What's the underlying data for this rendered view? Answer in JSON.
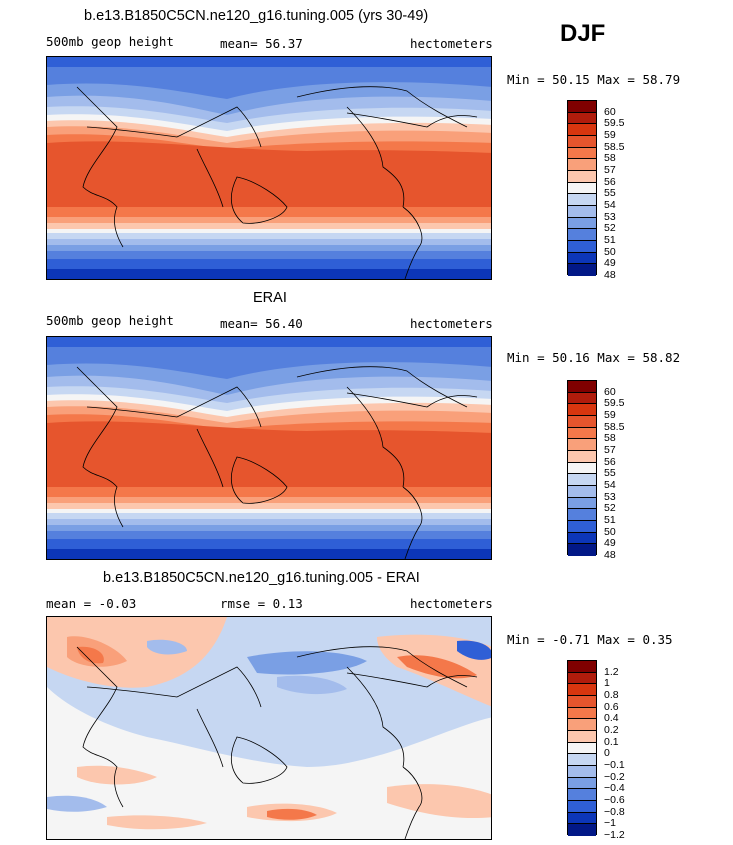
{
  "season_label": "DJF",
  "panels": [
    {
      "title": "b.e13.B1850C5CN.ne120_g16.tuning.005 (yrs 30-49)",
      "left_label": "500mb geop height",
      "center_label": "mean=  56.37",
      "units": "hectometers",
      "min_max": "Min =  50.15 Max =  58.79",
      "colorbar_labels": [
        "60",
        "59.5",
        "59",
        "58.5",
        "58",
        "57",
        "56",
        "55",
        "54",
        "53",
        "52",
        "51",
        "50",
        "49",
        "48"
      ],
      "colorbar_colors": [
        "#800000",
        "#b01c0c",
        "#d8360f",
        "#e6552d",
        "#f4784a",
        "#f9a07a",
        "#fcc7ae",
        "#f5f5f5",
        "#c6d7f2",
        "#a3bcec",
        "#7a9fe4",
        "#5580dd",
        "#2f5fd6",
        "#0c36b8",
        "#021887"
      ]
    },
    {
      "title": "ERAI",
      "left_label": "500mb geop height",
      "center_label": "mean=  56.40",
      "units": "hectometers",
      "min_max": "Min =  50.16 Max =  58.82",
      "colorbar_labels": [
        "60",
        "59.5",
        "59",
        "58.5",
        "58",
        "57",
        "56",
        "55",
        "54",
        "53",
        "52",
        "51",
        "50",
        "49",
        "48"
      ],
      "colorbar_colors": [
        "#800000",
        "#b01c0c",
        "#d8360f",
        "#e6552d",
        "#f4784a",
        "#f9a07a",
        "#fcc7ae",
        "#f5f5f5",
        "#c6d7f2",
        "#a3bcec",
        "#7a9fe4",
        "#5580dd",
        "#2f5fd6",
        "#0c36b8",
        "#021887"
      ]
    },
    {
      "title": "b.e13.B1850C5CN.ne120_g16.tuning.005 - ERAI",
      "left_label": "mean =  -0.03",
      "center_label": "rmse =   0.13",
      "units": "hectometers",
      "min_max": "Min =  -0.71 Max =   0.35",
      "colorbar_labels": [
        "1.2",
        "1",
        "0.8",
        "0.6",
        "0.4",
        "0.2",
        "0.1",
        "0",
        "−0.1",
        "−0.2",
        "−0.4",
        "−0.6",
        "−0.8",
        "−1",
        "−1.2"
      ],
      "colorbar_colors": [
        "#800000",
        "#b01c0c",
        "#d8360f",
        "#e6552d",
        "#f4784a",
        "#f9a07a",
        "#fcc7ae",
        "#f5f5f5",
        "#c6d7f2",
        "#a3bcec",
        "#7a9fe4",
        "#5580dd",
        "#2f5fd6",
        "#0c36b8",
        "#021887"
      ]
    }
  ],
  "chart_data": [
    {
      "type": "heatmap",
      "title": "b.e13.B1850C5CN.ne120_g16.tuning.005 (yrs 30-49)",
      "variable": "500mb geop height",
      "units": "hectometers",
      "mean": 56.37,
      "min": 50.15,
      "max": 58.79,
      "contour_levels": [
        48,
        49,
        50,
        51,
        52,
        53,
        54,
        55,
        56,
        57,
        58,
        58.5,
        59,
        59.5,
        60
      ]
    },
    {
      "type": "heatmap",
      "title": "ERAI",
      "variable": "500mb geop height",
      "units": "hectometers",
      "mean": 56.4,
      "min": 50.16,
      "max": 58.82,
      "contour_levels": [
        48,
        49,
        50,
        51,
        52,
        53,
        54,
        55,
        56,
        57,
        58,
        58.5,
        59,
        59.5,
        60
      ]
    },
    {
      "type": "heatmap",
      "title": "b.e13.B1850C5CN.ne120_g16.tuning.005 - ERAI",
      "units": "hectometers",
      "mean": -0.03,
      "rmse": 0.13,
      "min": -0.71,
      "max": 0.35,
      "contour_levels": [
        -1.2,
        -1,
        -0.8,
        -0.6,
        -0.4,
        -0.2,
        -0.1,
        0,
        0.1,
        0.2,
        0.4,
        0.6,
        0.8,
        1,
        1.2
      ]
    }
  ]
}
